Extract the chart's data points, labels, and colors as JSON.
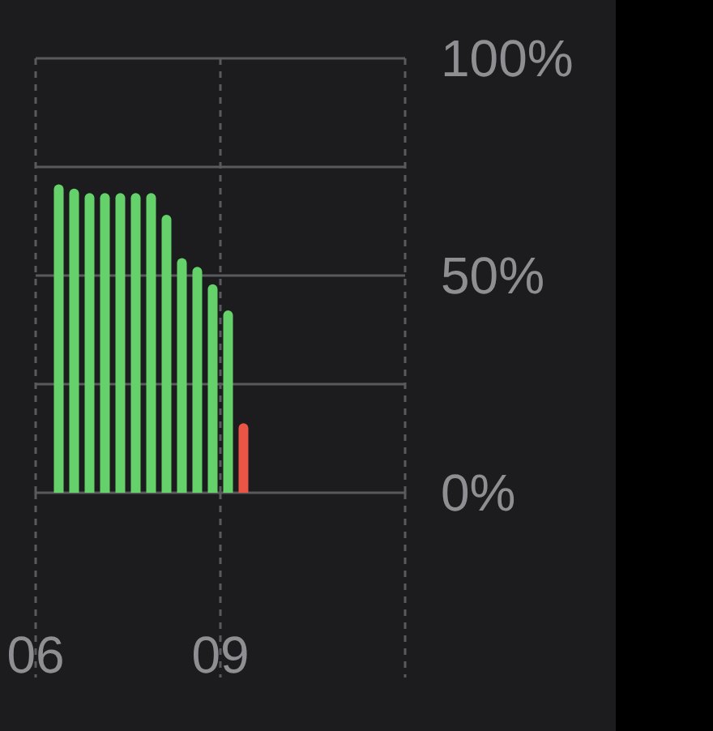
{
  "chart_data": {
    "type": "bar",
    "x": [
      6.375,
      6.625,
      6.875,
      7.125,
      7.375,
      7.625,
      7.875,
      8.125,
      8.375,
      8.625,
      8.875,
      9.125,
      9.375
    ],
    "values": [
      71,
      70,
      69,
      69,
      69,
      69,
      69,
      64,
      54,
      52,
      48,
      42,
      16
    ],
    "colors": [
      "#65d16a",
      "#65d16a",
      "#65d16a",
      "#65d16a",
      "#65d16a",
      "#65d16a",
      "#65d16a",
      "#65d16a",
      "#65d16a",
      "#65d16a",
      "#65d16a",
      "#65d16a",
      "#eb5545"
    ],
    "xlim": [
      6,
      12
    ],
    "xticks": [
      {
        "value": 6,
        "label": "06"
      },
      {
        "value": 9,
        "label": "09"
      },
      {
        "value": 12,
        "label": null
      }
    ],
    "ylim": [
      0,
      100
    ],
    "yticks": [
      {
        "value": 0,
        "label": "0%"
      },
      {
        "value": 25,
        "label": null
      },
      {
        "value": 50,
        "label": "50%"
      },
      {
        "value": 75,
        "label": null
      },
      {
        "value": 100,
        "label": "100%"
      }
    ],
    "grid": "y",
    "ref_lines": [
      {
        "axis": "x",
        "value": 6,
        "line_style": "dashed",
        "color": "#5a5a5e"
      },
      {
        "axis": "x",
        "value": 9,
        "line_style": "dashed",
        "color": "#5a5a5e"
      },
      {
        "axis": "x",
        "value": 12,
        "line_style": "dashed",
        "color": "#5a5a5e"
      }
    ]
  }
}
